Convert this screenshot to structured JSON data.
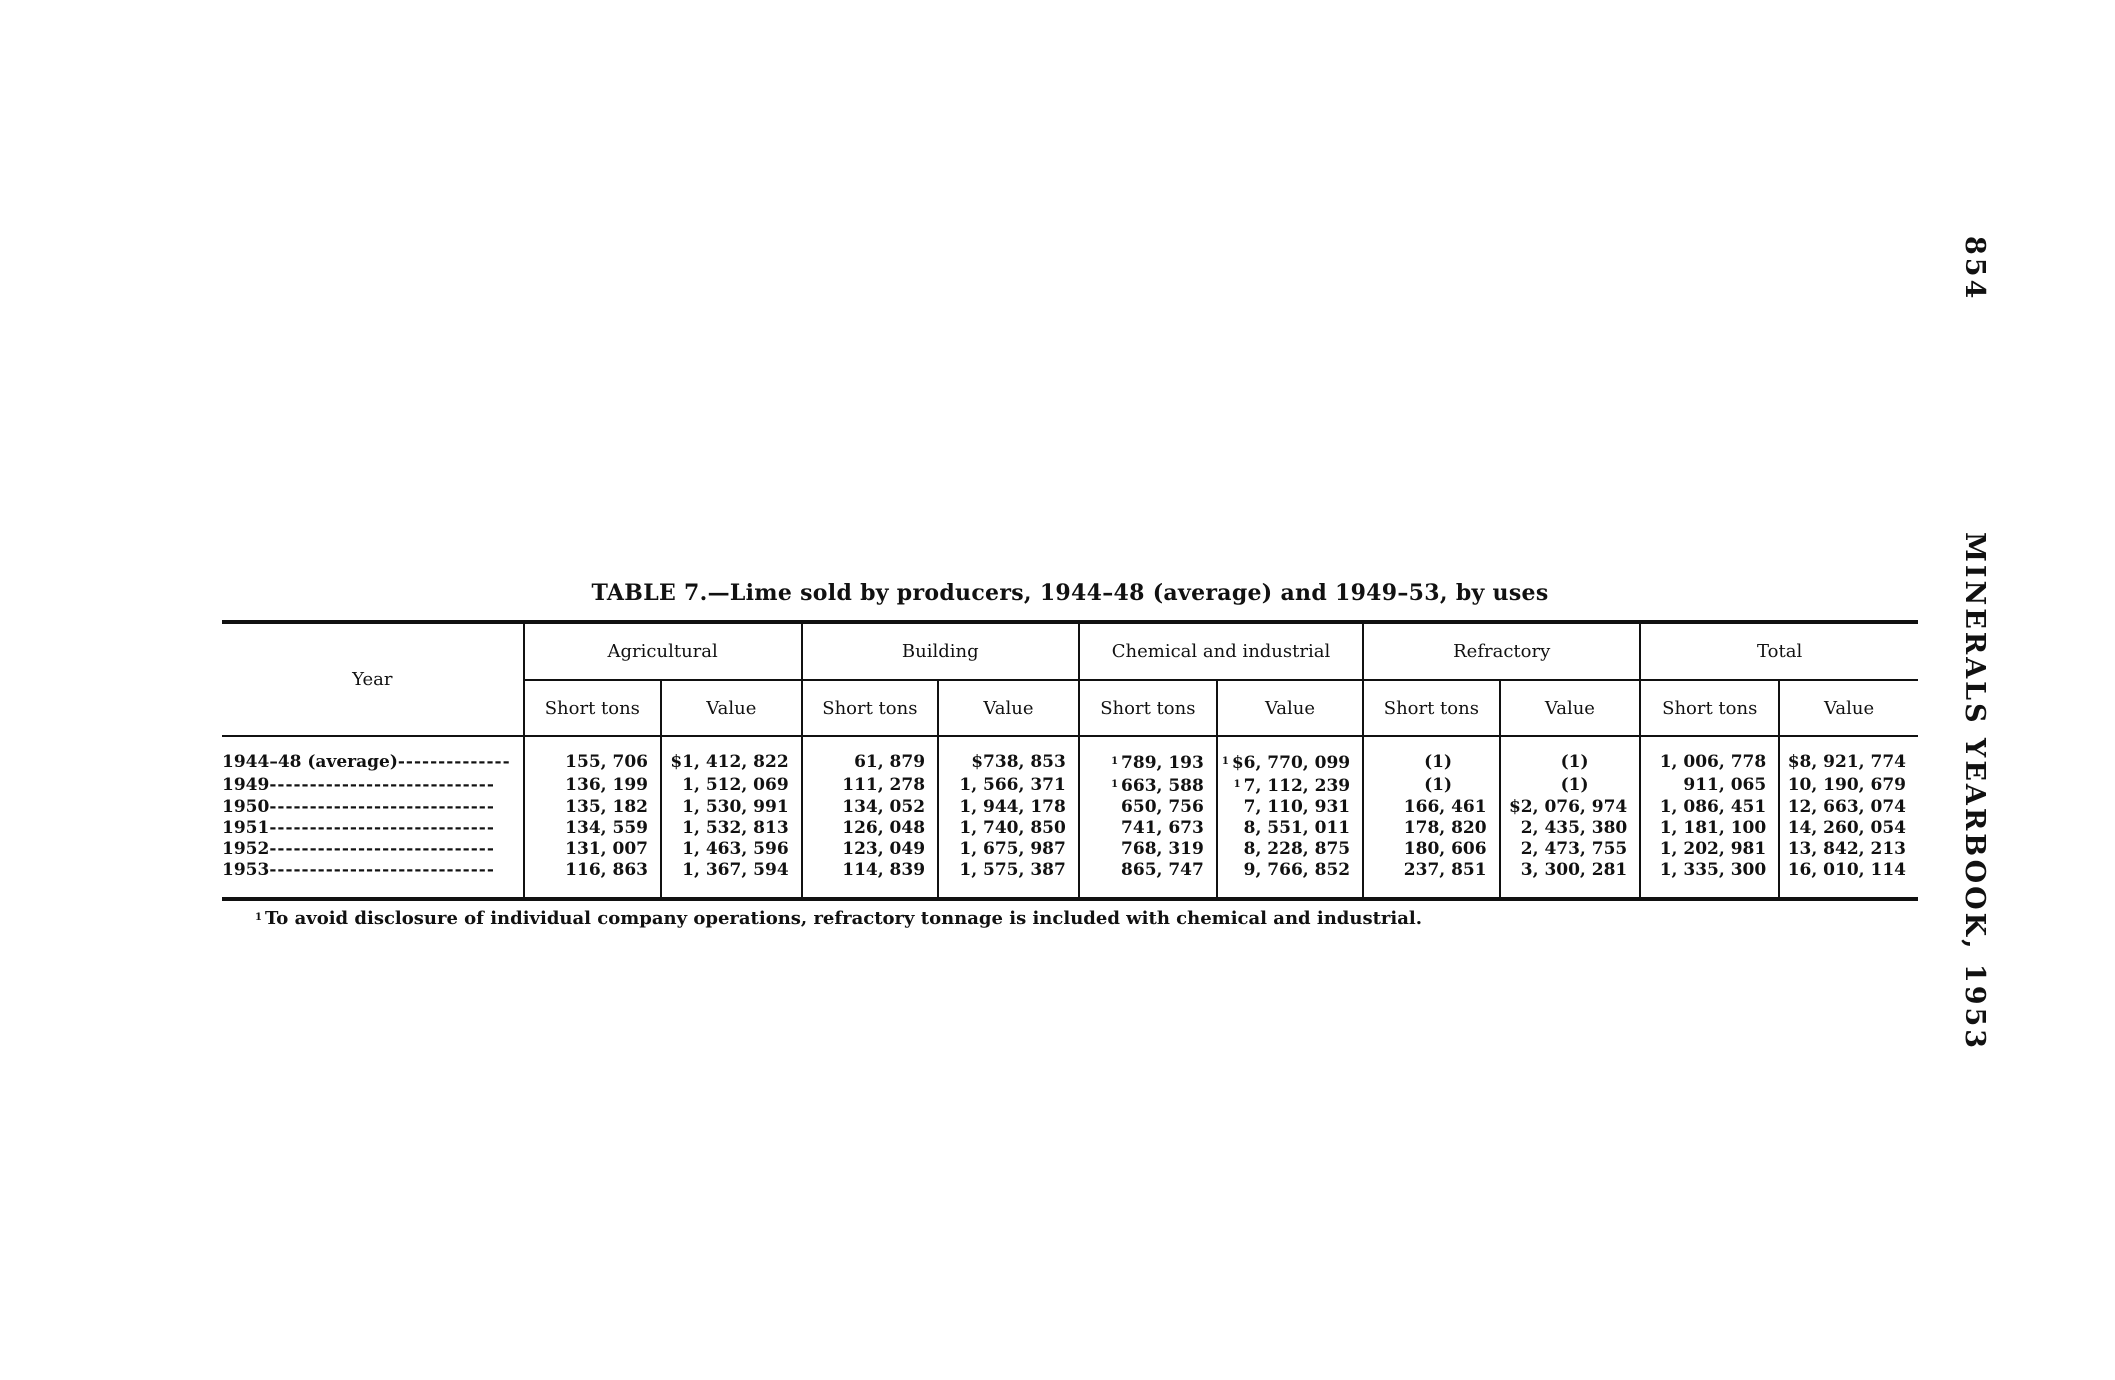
{
  "running_header": {
    "title": "MINERALS YEARBOOK, 1953",
    "page_number": "854"
  },
  "table": {
    "title": "TABLE 7.—Lime sold by producers, 1944–48 (average) and 1949–53, by uses",
    "year_header": "Year",
    "groups": [
      "Agricultural",
      "Building",
      "Chemical and industrial",
      "Refractory",
      "Total"
    ],
    "sub_headers": [
      "Short tons",
      "Value"
    ],
    "rows": [
      {
        "year": "1944–48 (average)",
        "cells": [
          "155, 706",
          "$1, 412, 822",
          "61, 879",
          "$738, 853",
          "789, 193",
          "$6, 770, 099",
          "(1)",
          "(1)",
          "1, 006, 778",
          "$8, 921, 774"
        ],
        "footnoted": [
          4,
          5
        ]
      },
      {
        "year": "1949",
        "cells": [
          "136, 199",
          "1, 512, 069",
          "111, 278",
          "1, 566, 371",
          "663, 588",
          "7, 112, 239",
          "(1)",
          "(1)",
          "911, 065",
          "10, 190, 679"
        ],
        "footnoted": [
          4,
          5
        ]
      },
      {
        "year": "1950",
        "cells": [
          "135, 182",
          "1, 530, 991",
          "134, 052",
          "1, 944, 178",
          "650, 756",
          "7, 110, 931",
          "166, 461",
          "$2, 076, 974",
          "1, 086, 451",
          "12, 663, 074"
        ]
      },
      {
        "year": "1951",
        "cells": [
          "134, 559",
          "1, 532, 813",
          "126, 048",
          "1, 740, 850",
          "741, 673",
          "8, 551, 011",
          "178, 820",
          "2, 435, 380",
          "1, 181, 100",
          "14, 260, 054"
        ]
      },
      {
        "year": "1952",
        "cells": [
          "131, 007",
          "1, 463, 596",
          "123, 049",
          "1, 675, 987",
          "768, 319",
          "8, 228, 875",
          "180, 606",
          "2, 473, 755",
          "1, 202, 981",
          "13, 842, 213"
        ]
      },
      {
        "year": "1953",
        "cells": [
          "116, 863",
          "1, 367, 594",
          "114, 839",
          "1, 575, 387",
          "865, 747",
          "9, 766, 852",
          "237, 851",
          "3, 300, 281",
          "1, 335, 300",
          "16, 010, 114"
        ]
      }
    ],
    "footnote_marker": "1",
    "footnote": "To avoid disclosure of individual company operations, refractory tonnage is included with chemical and industrial."
  }
}
